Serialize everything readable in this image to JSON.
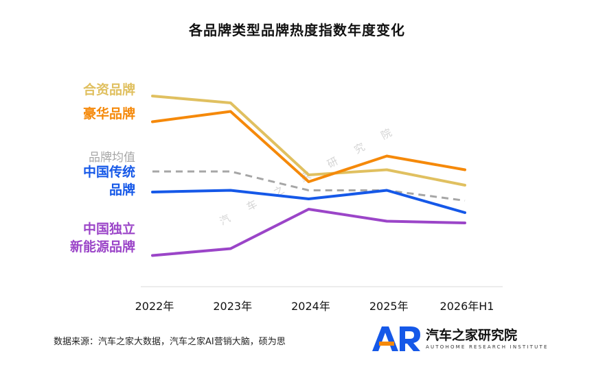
{
  "title": "各品牌类型品牌热度指数年度变化",
  "chart_data": {
    "type": "line",
    "categories": [
      "2022年",
      "2023年",
      "2024年",
      "2025年",
      "2026年H1"
    ],
    "ylim": [
      0,
      100
    ],
    "grid": false,
    "legend": "left, inline labels",
    "series": [
      {
        "name": "合资品牌",
        "values": [
          92,
          88,
          46,
          49,
          40
        ],
        "color": "#E0C060",
        "dashed": false
      },
      {
        "name": "豪华品牌",
        "values": [
          77,
          83,
          42,
          57,
          49
        ],
        "color": "#F5890A",
        "dashed": false
      },
      {
        "name": "品牌均值",
        "values": [
          48,
          48,
          37,
          37,
          31
        ],
        "color": "#A6A6A6",
        "dashed": true
      },
      {
        "name": "中国传统品牌",
        "values": [
          36,
          37,
          32,
          37,
          24
        ],
        "color": "#1558E8",
        "dashed": false
      },
      {
        "name": "中国独立新能源品牌",
        "values": [
          -1,
          3,
          26,
          19,
          18
        ],
        "color": "#9B45C8",
        "dashed": false
      }
    ],
    "series_label_lines": [
      [
        "合资品牌"
      ],
      [
        "豪华品牌"
      ],
      [
        "品牌均值"
      ],
      [
        "中国传统",
        "品牌"
      ],
      [
        "中国独立",
        "新能源品牌"
      ]
    ]
  },
  "watermark": "汽车之家研究院",
  "source": "数据来源：汽车之家大数据，汽车之家AI营销大脑，硕为思",
  "logo": {
    "mark": "AR",
    "name_cn": "汽车之家研究院",
    "name_en": "AUTOHOME RESEARCH INSTITUTE",
    "colors": [
      "#1558E8",
      "#F5890A"
    ]
  }
}
